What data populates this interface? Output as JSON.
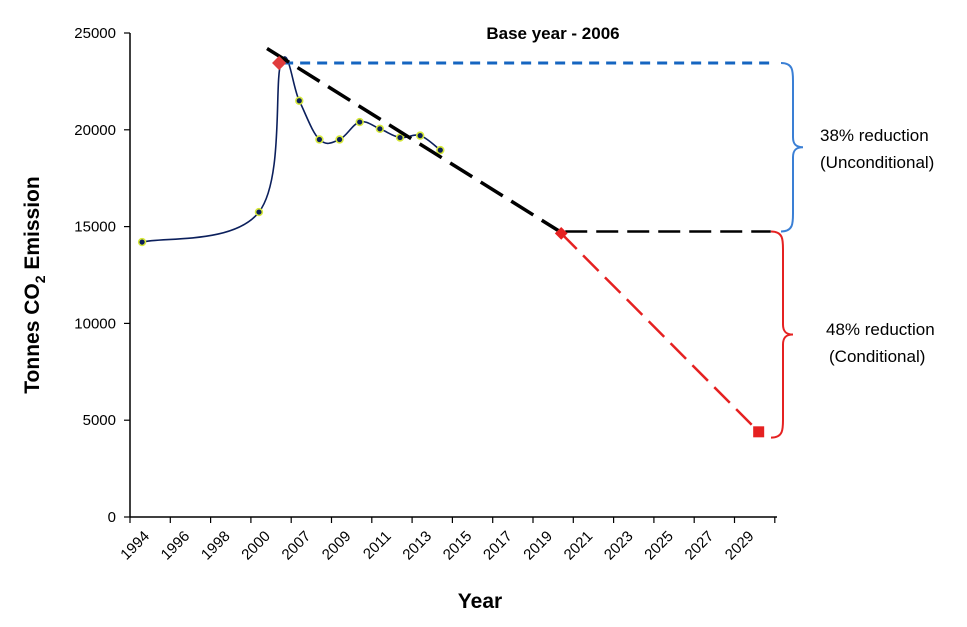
{
  "chart_data": {
    "type": "line",
    "title": "Base year - 2006",
    "xlabel": "Year",
    "ylabel_main": "Tonnes CO",
    "ylabel_sub": "2",
    "ylabel_rest": " Emission",
    "ylim": [
      0,
      25000
    ],
    "yticks": [
      "0",
      "5000",
      "10000",
      "15000",
      "20000",
      "25000"
    ],
    "categories": [
      "1994",
      "1996",
      "1998",
      "2000",
      "2007",
      "2009",
      "2011",
      "2013",
      "2015",
      "2017",
      "2019",
      "2021",
      "2023",
      "2025",
      "2027",
      "2029"
    ],
    "series": [
      {
        "values": [
          [
            0.3,
            14200
          ],
          [
            3.2,
            15750
          ],
          [
            3.75,
            23500
          ],
          [
            4.2,
            21500
          ],
          [
            4.7,
            19500
          ],
          [
            5.2,
            19500
          ],
          [
            5.7,
            20400
          ],
          [
            6.2,
            20050
          ],
          [
            6.7,
            19600
          ],
          [
            7.2,
            19700
          ],
          [
            7.7,
            18950
          ]
        ],
        "color": "#0b1f5c"
      }
    ],
    "trend": {
      "from": [
        3.4,
        24200
      ],
      "to": [
        10.7,
        14700
      ],
      "color": "#000000"
    },
    "base_marker": {
      "at": [
        3.7,
        23450
      ],
      "color": "#e03c3c"
    },
    "unconditional_level": {
      "from": [
        3.8,
        23450
      ],
      "to": [
        15.9,
        23450
      ],
      "color": "#1565c0"
    },
    "conditional_level": {
      "from": [
        10.8,
        14750
      ],
      "to": [
        15.9,
        14750
      ],
      "color": "#000000"
    },
    "projection": {
      "from": [
        10.7,
        14650
      ],
      "to": [
        15.6,
        4400
      ],
      "color": "#e52121"
    },
    "annotations": [
      {
        "lines": [
          "38% reduction",
          "(Unconditional)"
        ],
        "color": "#3a7fd5"
      },
      {
        "lines": [
          "48% reduction",
          "(Conditional)"
        ],
        "color": "#e52121"
      }
    ]
  }
}
